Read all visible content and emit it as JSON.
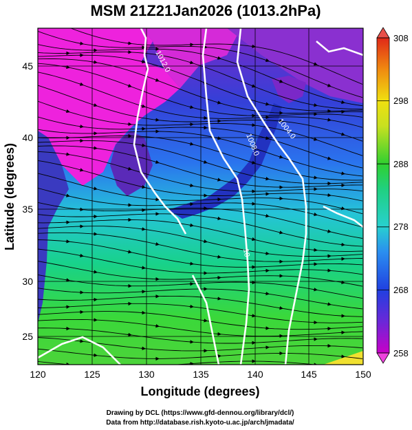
{
  "title": "MSM 21Z21Jan2026 (1013.2hPa)",
  "xlabel": "Longitude (degrees)",
  "ylabel": "Latitude  (degrees)",
  "x_ticks": [
    "120",
    "125",
    "130",
    "135",
    "140",
    "145",
    "150"
  ],
  "y_ticks": [
    "25",
    "30",
    "35",
    "40",
    "45"
  ],
  "colorbar": {
    "min": 258,
    "max": 308,
    "ticks": [
      "258",
      "268",
      "278",
      "288",
      "298",
      "308"
    ]
  },
  "isobar_labels": [
    "1012.0",
    "1008.0",
    "1004.0",
    "10"
  ],
  "credits": {
    "line1": "Drawing by DCL (https://www.gfd-dennou.org/library/dcl/)",
    "line2": "Data from http://database.rish.kyoto-u.ac.jp/arch/jmadata/"
  },
  "chart_data": {
    "type": "heatmap",
    "title": "MSM 21Z21Jan2026 (1013.2hPa)",
    "xlabel": "Longitude (degrees)",
    "ylabel": "Latitude  (degrees)",
    "xlim": [
      120,
      150
    ],
    "ylim": [
      22.4,
      47.6
    ],
    "colorbar_range": [
      258,
      308
    ],
    "grid": true
  }
}
